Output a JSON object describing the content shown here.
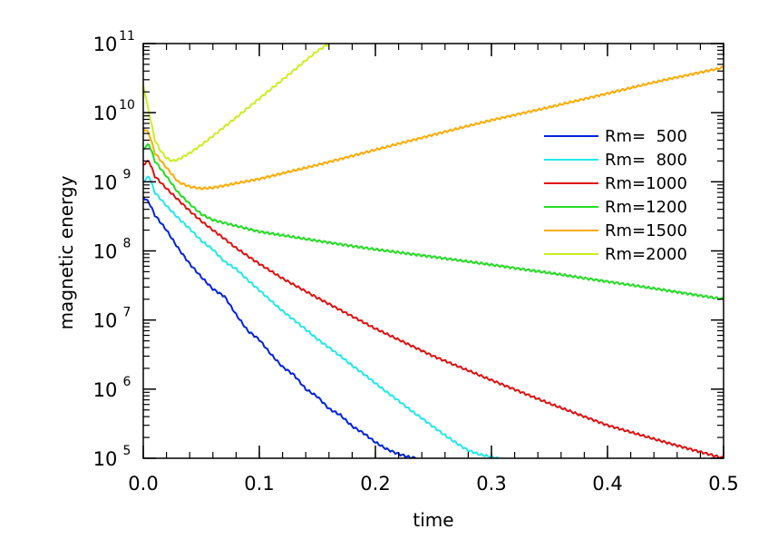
{
  "chart_data": {
    "type": "line",
    "xlabel": "time",
    "ylabel": "magnetic energy",
    "xlim": [
      0.0,
      0.5
    ],
    "ylim": [
      100000,
      100000000000
    ],
    "yscale": "log",
    "grid": false,
    "legend_position": "right",
    "x_ticks": [
      "0.0",
      "0.1",
      "0.2",
      "0.3",
      "0.4",
      "0.5"
    ],
    "y_ticks": [
      {
        "base": "10",
        "exp": "5"
      },
      {
        "base": "10",
        "exp": "6"
      },
      {
        "base": "10",
        "exp": "7"
      },
      {
        "base": "10",
        "exp": "8"
      },
      {
        "base": "10",
        "exp": "9"
      },
      {
        "base": "10",
        "exp": "10"
      },
      {
        "base": "10",
        "exp": "11"
      }
    ],
    "series": [
      {
        "name": "Rm=  500",
        "color": "#0022dd",
        "x": [
          0.0,
          0.005,
          0.01,
          0.02,
          0.03,
          0.04,
          0.05,
          0.06,
          0.07,
          0.08,
          0.09,
          0.1,
          0.11,
          0.12,
          0.13,
          0.14,
          0.15,
          0.16,
          0.17,
          0.18,
          0.19,
          0.2,
          0.21,
          0.22,
          0.23,
          0.235
        ],
        "y": [
          600000000,
          500000000,
          330000000,
          200000000,
          110000000,
          65000000,
          42000000,
          28000000,
          22000000,
          12000000,
          7000000,
          5200000,
          3200000,
          2100000,
          1600000,
          1000000,
          780000,
          520000,
          420000,
          290000,
          230000,
          170000,
          135000,
          115000,
          103000,
          100000
        ]
      },
      {
        "name": "Rm=  800",
        "color": "#22e8e8",
        "x": [
          0.0,
          0.005,
          0.01,
          0.02,
          0.03,
          0.04,
          0.05,
          0.06,
          0.07,
          0.08,
          0.09,
          0.1,
          0.11,
          0.12,
          0.13,
          0.14,
          0.15,
          0.16,
          0.17,
          0.18,
          0.19,
          0.2,
          0.21,
          0.22,
          0.23,
          0.24,
          0.25,
          0.26,
          0.27,
          0.28,
          0.29,
          0.3,
          0.305,
          0.31
        ],
        "y": [
          1000000000,
          1200000000,
          700000000,
          450000000,
          300000000,
          210000000,
          140000000,
          105000000,
          70000000,
          55000000,
          38000000,
          27000000,
          19000000,
          13500000,
          10000000,
          7300000,
          5300000,
          4000000,
          3000000,
          2200000,
          1650000,
          1220000,
          900000,
          680000,
          500000,
          380000,
          285000,
          215000,
          165000,
          130000,
          113000,
          105000,
          100000,
          97000
        ]
      },
      {
        "name": "Rm=1000",
        "color": "#dd1111",
        "x": [
          0.0,
          0.005,
          0.01,
          0.02,
          0.03,
          0.04,
          0.05,
          0.06,
          0.07,
          0.08,
          0.1,
          0.12,
          0.15,
          0.2,
          0.25,
          0.3,
          0.35,
          0.4,
          0.45,
          0.5
        ],
        "y": [
          1800000000,
          2000000000,
          1200000000,
          800000000,
          550000000,
          380000000,
          270000000,
          200000000,
          150000000,
          110000000,
          65000000,
          40000000,
          21000000,
          7500000,
          3000000,
          1350000,
          620000,
          300000,
          170000,
          100000
        ]
      },
      {
        "name": "Rm=1200",
        "color": "#22dd22",
        "x": [
          0.0,
          0.005,
          0.01,
          0.02,
          0.03,
          0.04,
          0.05,
          0.06,
          0.08,
          0.1,
          0.15,
          0.2,
          0.25,
          0.3,
          0.35,
          0.4,
          0.45,
          0.5
        ],
        "y": [
          3000000000,
          3500000000,
          2000000000,
          1200000000,
          700000000,
          480000000,
          340000000,
          280000000,
          230000000,
          190000000,
          140000000,
          105000000,
          82000000,
          63000000,
          48000000,
          36000000,
          27000000,
          20000000
        ]
      },
      {
        "name": "Rm=1500",
        "color": "#ffaa00",
        "x": [
          0.0,
          0.005,
          0.01,
          0.02,
          0.03,
          0.04,
          0.05,
          0.06,
          0.08,
          0.1,
          0.15,
          0.2,
          0.25,
          0.3,
          0.35,
          0.4,
          0.45,
          0.5
        ],
        "y": [
          6000000000,
          5000000000,
          2600000000,
          1600000000,
          1000000000,
          850000000,
          800000000,
          820000000,
          950000000,
          1100000000,
          1750000000,
          2900000000,
          4800000000,
          7800000000,
          12000000000,
          19000000000,
          30000000000,
          45000000000
        ]
      },
      {
        "name": "Rm=2000",
        "color": "#ccee22",
        "x": [
          0.0,
          0.005,
          0.01,
          0.015,
          0.02,
          0.025,
          0.03,
          0.04,
          0.05,
          0.06,
          0.08,
          0.1,
          0.12,
          0.14,
          0.15,
          0.16
        ],
        "y": [
          25000000000,
          10000000000,
          4000000000,
          2800000000,
          2200000000,
          2000000000,
          2100000000,
          2600000000,
          3400000000,
          4600000000,
          8500000000,
          16000000000,
          30000000000,
          57000000000,
          78000000000,
          100000000000
        ]
      }
    ]
  }
}
